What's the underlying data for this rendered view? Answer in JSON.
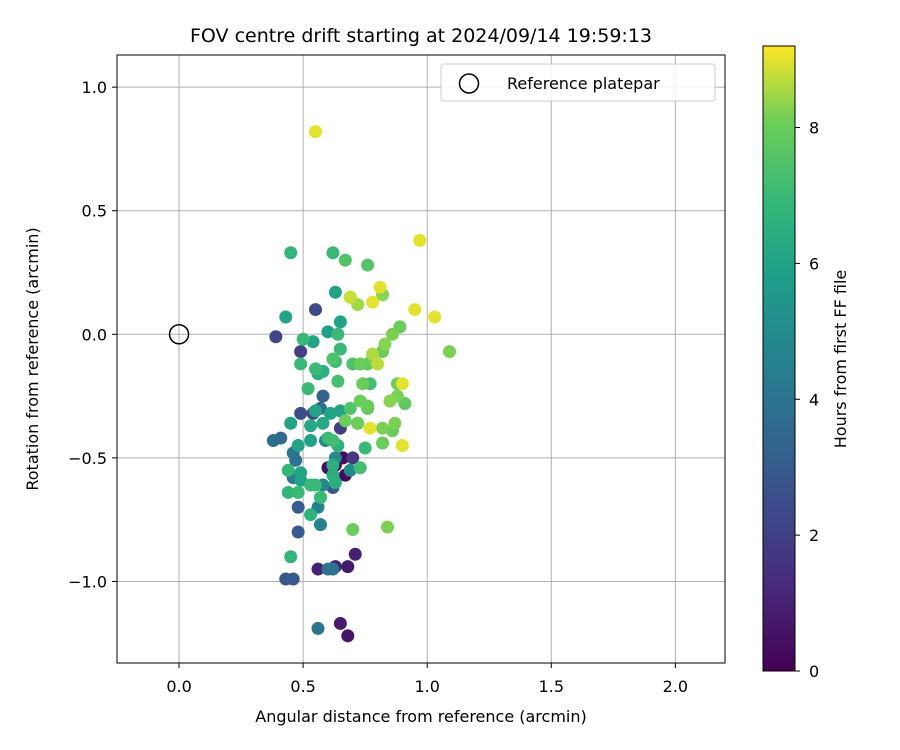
{
  "chart_data": {
    "type": "scatter",
    "title": "FOV centre drift starting at 2024/09/14 19:59:13",
    "xlabel": "Angular distance from reference (arcmin)",
    "ylabel": "Rotation from reference (arcmin)",
    "xlim": [
      -0.25,
      2.2
    ],
    "ylim": [
      -1.33,
      1.13
    ],
    "x_ticks": [
      0.0,
      0.5,
      1.0,
      1.5,
      2.0
    ],
    "x_tick_labels": [
      "0.0",
      "0.5",
      "1.0",
      "1.5",
      "2.0"
    ],
    "y_ticks": [
      1.0,
      0.5,
      0.0,
      -0.5,
      -1.0
    ],
    "y_tick_labels": [
      "1.0",
      "0.5",
      "0.0",
      "−0.5",
      "−1.0"
    ],
    "grid": true,
    "legend": {
      "placement": "top-right",
      "entries": [
        {
          "label": "Reference platepar",
          "marker": "open-circle",
          "color": "#000000"
        }
      ]
    },
    "reference_point": {
      "x": 0.0,
      "y": 0.0
    },
    "colorbar": {
      "label": "Hours from first FF file",
      "min": 0,
      "max": 9.2,
      "ticks": [
        0,
        2,
        4,
        6,
        8
      ],
      "tick_labels": [
        "0",
        "2",
        "4",
        "6",
        "8"
      ],
      "colormap": "viridis"
    },
    "points": [
      {
        "x": 0.55,
        "y": 0.82,
        "h": 9.0
      },
      {
        "x": 0.97,
        "y": 0.38,
        "h": 9.0
      },
      {
        "x": 1.03,
        "y": 0.07,
        "h": 9.0
      },
      {
        "x": 0.95,
        "y": 0.1,
        "h": 9.0
      },
      {
        "x": 0.81,
        "y": 0.19,
        "h": 9.0
      },
      {
        "x": 0.78,
        "y": 0.13,
        "h": 9.0
      },
      {
        "x": 0.9,
        "y": -0.2,
        "h": 9.0
      },
      {
        "x": 0.9,
        "y": -0.45,
        "h": 9.0
      },
      {
        "x": 0.77,
        "y": -0.38,
        "h": 9.0
      },
      {
        "x": 0.69,
        "y": 0.15,
        "h": 8.8
      },
      {
        "x": 0.72,
        "y": 0.12,
        "h": 8.5
      },
      {
        "x": 0.78,
        "y": -0.08,
        "h": 8.6
      },
      {
        "x": 0.8,
        "y": -0.12,
        "h": 8.7
      },
      {
        "x": 0.83,
        "y": -0.04,
        "h": 8.3
      },
      {
        "x": 0.86,
        "y": 0.0,
        "h": 8.2
      },
      {
        "x": 0.89,
        "y": 0.03,
        "h": 8.0
      },
      {
        "x": 0.82,
        "y": 0.16,
        "h": 8.3
      },
      {
        "x": 0.82,
        "y": -0.07,
        "h": 8.0
      },
      {
        "x": 0.85,
        "y": -0.27,
        "h": 8.3
      },
      {
        "x": 0.88,
        "y": -0.2,
        "h": 8.0
      },
      {
        "x": 0.88,
        "y": -0.25,
        "h": 8.2
      },
      {
        "x": 0.91,
        "y": -0.28,
        "h": 7.8
      },
      {
        "x": 0.87,
        "y": -0.36,
        "h": 8.2
      },
      {
        "x": 0.86,
        "y": -0.39,
        "h": 8.0
      },
      {
        "x": 0.82,
        "y": -0.38,
        "h": 8.2
      },
      {
        "x": 0.82,
        "y": -0.44,
        "h": 8.0
      },
      {
        "x": 1.09,
        "y": -0.07,
        "h": 8.2
      },
      {
        "x": 0.84,
        "y": -0.78,
        "h": 8.2
      },
      {
        "x": 0.7,
        "y": -0.79,
        "h": 8.0
      },
      {
        "x": 0.73,
        "y": -0.27,
        "h": 8.0
      },
      {
        "x": 0.74,
        "y": -0.2,
        "h": 8.0
      },
      {
        "x": 0.76,
        "y": -0.29,
        "h": 8.0
      },
      {
        "x": 0.73,
        "y": -0.12,
        "h": 8.0
      },
      {
        "x": 0.76,
        "y": -0.12,
        "h": 7.8
      },
      {
        "x": 0.76,
        "y": -0.3,
        "h": 7.8
      },
      {
        "x": 0.78,
        "y": -0.1,
        "h": 8.0
      },
      {
        "x": 0.67,
        "y": -0.35,
        "h": 8.0
      },
      {
        "x": 0.72,
        "y": -0.36,
        "h": 8.0
      },
      {
        "x": 0.76,
        "y": 0.28,
        "h": 7.6
      },
      {
        "x": 0.67,
        "y": 0.3,
        "h": 7.5
      },
      {
        "x": 0.72,
        "y": -0.36,
        "h": 7.6
      },
      {
        "x": 0.69,
        "y": -0.3,
        "h": 7.5
      },
      {
        "x": 0.7,
        "y": -0.12,
        "h": 7.4
      },
      {
        "x": 0.69,
        "y": 0.15,
        "h": 7.5
      },
      {
        "x": 0.64,
        "y": -0.19,
        "h": 7.3
      },
      {
        "x": 0.62,
        "y": -0.1,
        "h": 7.4
      },
      {
        "x": 0.77,
        "y": -0.2,
        "h": 7.2
      },
      {
        "x": 0.75,
        "y": -0.46,
        "h": 7.0
      },
      {
        "x": 0.73,
        "y": -0.54,
        "h": 7.2
      },
      {
        "x": 0.62,
        "y": -0.43,
        "h": 7.2
      },
      {
        "x": 0.6,
        "y": -0.42,
        "h": 7.0
      },
      {
        "x": 0.55,
        "y": -0.14,
        "h": 7.0
      },
      {
        "x": 0.52,
        "y": -0.22,
        "h": 7.0
      },
      {
        "x": 0.5,
        "y": -0.02,
        "h": 7.0
      },
      {
        "x": 0.49,
        "y": -0.12,
        "h": 7.0
      },
      {
        "x": 0.64,
        "y": 0.0,
        "h": 7.0
      },
      {
        "x": 0.65,
        "y": -0.06,
        "h": 7.0
      },
      {
        "x": 0.63,
        "y": -0.11,
        "h": 7.0
      },
      {
        "x": 0.62,
        "y": 0.33,
        "h": 7.0
      },
      {
        "x": 0.45,
        "y": 0.33,
        "h": 6.8
      },
      {
        "x": 0.57,
        "y": -0.66,
        "h": 7.0
      },
      {
        "x": 0.55,
        "y": -0.61,
        "h": 7.0
      },
      {
        "x": 0.53,
        "y": -0.61,
        "h": 7.0
      },
      {
        "x": 0.48,
        "y": -0.64,
        "h": 7.0
      },
      {
        "x": 0.44,
        "y": -0.64,
        "h": 6.8
      },
      {
        "x": 0.44,
        "y": -0.55,
        "h": 6.8
      },
      {
        "x": 0.45,
        "y": -0.9,
        "h": 6.8
      },
      {
        "x": 0.53,
        "y": -0.73,
        "h": 6.7
      },
      {
        "x": 0.62,
        "y": -0.57,
        "h": 6.5
      },
      {
        "x": 0.63,
        "y": -0.6,
        "h": 6.5
      },
      {
        "x": 0.64,
        "y": -0.45,
        "h": 6.5
      },
      {
        "x": 0.62,
        "y": -0.53,
        "h": 6.5
      },
      {
        "x": 0.56,
        "y": -0.16,
        "h": 6.5
      },
      {
        "x": 0.58,
        "y": -0.15,
        "h": 6.5
      },
      {
        "x": 0.58,
        "y": -0.36,
        "h": 6.2
      },
      {
        "x": 0.53,
        "y": -0.37,
        "h": 6.2
      },
      {
        "x": 0.53,
        "y": -0.43,
        "h": 6.0
      },
      {
        "x": 0.55,
        "y": -0.31,
        "h": 6.0
      },
      {
        "x": 0.61,
        "y": -0.32,
        "h": 6.0
      },
      {
        "x": 0.65,
        "y": -0.31,
        "h": 6.0
      },
      {
        "x": 0.65,
        "y": 0.05,
        "h": 6.0
      },
      {
        "x": 0.6,
        "y": 0.01,
        "h": 5.8
      },
      {
        "x": 0.63,
        "y": 0.17,
        "h": 6.0
      },
      {
        "x": 0.43,
        "y": 0.07,
        "h": 6.0
      },
      {
        "x": 0.54,
        "y": -0.03,
        "h": 6.0
      },
      {
        "x": 0.45,
        "y": -0.36,
        "h": 6.0
      },
      {
        "x": 0.49,
        "y": -0.56,
        "h": 6.0
      },
      {
        "x": 0.49,
        "y": -0.59,
        "h": 6.0
      },
      {
        "x": 0.48,
        "y": -0.45,
        "h": 6.0
      },
      {
        "x": 0.59,
        "y": -0.43,
        "h": 5.0
      },
      {
        "x": 0.63,
        "y": -0.5,
        "h": 5.0
      },
      {
        "x": 0.69,
        "y": -0.55,
        "h": 5.0
      },
      {
        "x": 0.58,
        "y": -0.61,
        "h": 4.8
      },
      {
        "x": 0.56,
        "y": -0.7,
        "h": 4.5
      },
      {
        "x": 0.57,
        "y": -0.77,
        "h": 4.5
      },
      {
        "x": 0.46,
        "y": -0.48,
        "h": 4.0
      },
      {
        "x": 0.47,
        "y": -0.51,
        "h": 4.0
      },
      {
        "x": 0.38,
        "y": -0.43,
        "h": 3.8
      },
      {
        "x": 0.41,
        "y": -0.42,
        "h": 3.5
      },
      {
        "x": 0.46,
        "y": -0.58,
        "h": 4.2
      },
      {
        "x": 0.6,
        "y": -0.95,
        "h": 4.0
      },
      {
        "x": 0.62,
        "y": -0.95,
        "h": 4.0
      },
      {
        "x": 0.56,
        "y": -1.19,
        "h": 4.0
      },
      {
        "x": 0.57,
        "y": -0.3,
        "h": 3.5
      },
      {
        "x": 0.58,
        "y": -0.25,
        "h": 3.3
      },
      {
        "x": 0.62,
        "y": -0.62,
        "h": 3.0
      },
      {
        "x": 0.48,
        "y": -0.7,
        "h": 3.0
      },
      {
        "x": 0.48,
        "y": -0.8,
        "h": 3.0
      },
      {
        "x": 0.46,
        "y": -0.99,
        "h": 3.0
      },
      {
        "x": 0.43,
        "y": -0.99,
        "h": 2.8
      },
      {
        "x": 0.49,
        "y": -0.32,
        "h": 2.5
      },
      {
        "x": 0.54,
        "y": -0.32,
        "h": 2.3
      },
      {
        "x": 0.55,
        "y": 0.1,
        "h": 2.3
      },
      {
        "x": 0.39,
        "y": -0.01,
        "h": 2.2
      },
      {
        "x": 0.49,
        "y": -0.07,
        "h": 2.0
      },
      {
        "x": 0.65,
        "y": -0.38,
        "h": 2.0
      },
      {
        "x": 0.7,
        "y": -0.5,
        "h": 1.8
      },
      {
        "x": 0.56,
        "y": -0.95,
        "h": 1.0
      },
      {
        "x": 0.63,
        "y": -0.94,
        "h": 1.0
      },
      {
        "x": 0.71,
        "y": -0.89,
        "h": 1.0
      },
      {
        "x": 0.68,
        "y": -0.94,
        "h": 0.8
      },
      {
        "x": 0.65,
        "y": -1.17,
        "h": 0.8
      },
      {
        "x": 0.68,
        "y": -1.22,
        "h": 0.6
      },
      {
        "x": 0.6,
        "y": -0.54,
        "h": 0.5
      },
      {
        "x": 0.66,
        "y": -0.5,
        "h": 0.3
      },
      {
        "x": 0.67,
        "y": -0.57,
        "h": 0.3
      },
      {
        "x": 0.63,
        "y": -0.53,
        "h": 0.5
      }
    ]
  }
}
